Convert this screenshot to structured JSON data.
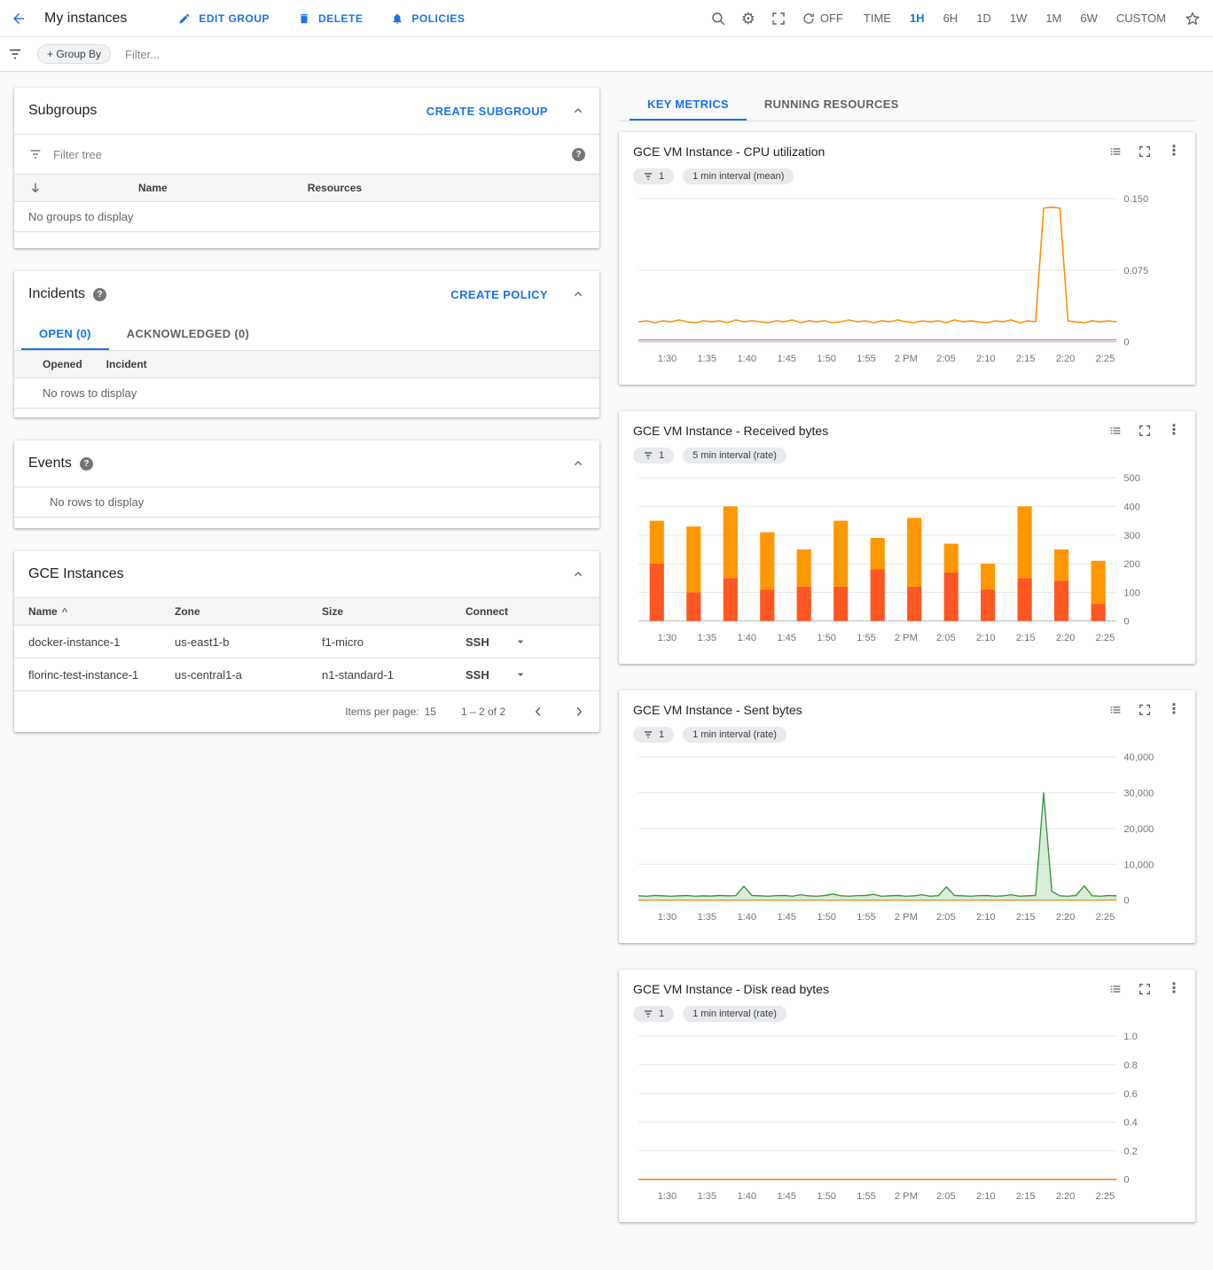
{
  "header": {
    "title": "My instances",
    "actions": [
      {
        "label": "EDIT GROUP",
        "icon": "pencil-icon"
      },
      {
        "label": "DELETE",
        "icon": "trash-icon"
      },
      {
        "label": "POLICIES",
        "icon": "bell-icon"
      }
    ],
    "refresh_label": "OFF",
    "time_label": "TIME",
    "time_ranges": [
      "1H",
      "6H",
      "1D",
      "1W",
      "1M",
      "6W",
      "CUSTOM"
    ],
    "selected_range": "1H"
  },
  "filter_bar": {
    "group_by_label": "+ Group By",
    "filter_placeholder": "Filter..."
  },
  "subgroups": {
    "title": "Subgroups",
    "create_label": "CREATE SUBGROUP",
    "filter_placeholder": "Filter tree",
    "columns": [
      "Name",
      "Resources"
    ],
    "empty_text": "No groups to display"
  },
  "incidents": {
    "title": "Incidents",
    "create_label": "CREATE POLICY",
    "tabs": [
      "OPEN (0)",
      "ACKNOWLEDGED (0)"
    ],
    "active_tab": "OPEN (0)",
    "columns": [
      "Opened",
      "Incident"
    ],
    "empty_text": "No rows to display"
  },
  "events": {
    "title": "Events",
    "empty_text": "No rows to display"
  },
  "instances": {
    "title": "GCE Instances",
    "columns": [
      "Name",
      "Zone",
      "Size",
      "Connect"
    ],
    "sort_column": "Name",
    "rows": [
      {
        "name": "docker-instance-1",
        "zone": "us-east1-b",
        "size": "f1-micro",
        "connect": "SSH"
      },
      {
        "name": "florinc-test-instance-1",
        "zone": "us-central1-a",
        "size": "n1-standard-1",
        "connect": "SSH"
      }
    ],
    "items_per_page_label": "Items per page:",
    "items_per_page": "15",
    "range_label": "1 – 2 of 2"
  },
  "metrics": {
    "tabs": [
      "KEY METRICS",
      "RUNNING RESOURCES"
    ],
    "active_tab": "KEY METRICS"
  },
  "icons": {
    "back": "arrow-left",
    "search": "magnifier",
    "settings": "gear",
    "fullscreen": "expand-corners",
    "refresh": "circular-arrow",
    "favorite": "star-outline",
    "filter": "funnel",
    "help": "question-circle",
    "collapse": "chevron-up",
    "sort": "arrow-down",
    "more": "vertical-dots",
    "legend": "list",
    "dropdown": "caret-down"
  },
  "colors": {
    "accent_blue": "#1a73e8",
    "cpu_line": "#fb8c00",
    "cpu_line_secondary": "#ba68c8",
    "received_bottom": "#ff5722",
    "received_top": "#ff9800",
    "sent_line": "#388e3c",
    "disk_line_red": "#e53935",
    "disk_line_orange": "#fb8c00"
  },
  "chart_data": [
    {
      "type": "line",
      "title": "GCE VM Instance - CPU utilization",
      "filter_chip": "1",
      "interval_chip": "1 min interval (mean)",
      "x_ticks": [
        "1:30",
        "1:35",
        "1:40",
        "1:45",
        "1:50",
        "1:55",
        "2 PM",
        "2:05",
        "2:10",
        "2:15",
        "2:20",
        "2:25"
      ],
      "ylim": [
        0,
        0.15
      ],
      "y_ticks": [
        {
          "value": 0.15,
          "label": "0.150"
        },
        {
          "value": 0.075,
          "label": "0.075"
        },
        {
          "value": 0,
          "label": "0"
        }
      ],
      "series": [
        {
          "color": "#fb8c00",
          "width": 1.5,
          "values": [
            0.021,
            0.022,
            0.02,
            0.022,
            0.021,
            0.023,
            0.021,
            0.02,
            0.022,
            0.021,
            0.022,
            0.02,
            0.023,
            0.021,
            0.022,
            0.021,
            0.02,
            0.022,
            0.021,
            0.023,
            0.02,
            0.022,
            0.021,
            0.022,
            0.02,
            0.021,
            0.023,
            0.021,
            0.022,
            0.02,
            0.022,
            0.021,
            0.023,
            0.021,
            0.02,
            0.022,
            0.021,
            0.022,
            0.02,
            0.023,
            0.021,
            0.022,
            0.021,
            0.02,
            0.022,
            0.021,
            0.023,
            0.02,
            0.022,
            0.021,
            0.14,
            0.141,
            0.14,
            0.022,
            0.021,
            0.02,
            0.022,
            0.021,
            0.022,
            0.021
          ]
        },
        {
          "color": "#ba68c8",
          "width": 1.2,
          "values": [
            0.002,
            0.002
          ]
        }
      ]
    },
    {
      "type": "stacked_bar",
      "title": "GCE VM Instance - Received bytes",
      "filter_chip": "1",
      "interval_chip": "5 min interval (rate)",
      "x_ticks": [
        "1:30",
        "1:35",
        "1:40",
        "1:45",
        "1:50",
        "1:55",
        "2 PM",
        "2:05",
        "2:10",
        "2:15",
        "2:20",
        "2:25"
      ],
      "ylim": [
        0,
        500
      ],
      "y_ticks": [
        {
          "value": 500,
          "label": "500"
        },
        {
          "value": 400,
          "label": "400"
        },
        {
          "value": 300,
          "label": "300"
        },
        {
          "value": 200,
          "label": "200"
        },
        {
          "value": 100,
          "label": "100"
        },
        {
          "value": 0,
          "label": "0"
        }
      ],
      "series": [
        {
          "color": "#ff5722",
          "values": [
            200,
            100,
            150,
            110,
            120,
            120,
            180,
            120,
            170,
            110,
            150,
            140,
            60
          ]
        },
        {
          "color": "#ff9800",
          "values": [
            150,
            230,
            250,
            200,
            130,
            230,
            110,
            240,
            100,
            90,
            250,
            110,
            150
          ]
        }
      ]
    },
    {
      "type": "line",
      "title": "GCE VM Instance - Sent bytes",
      "filter_chip": "1",
      "interval_chip": "1 min interval (rate)",
      "x_ticks": [
        "1:30",
        "1:35",
        "1:40",
        "1:45",
        "1:50",
        "1:55",
        "2 PM",
        "2:05",
        "2:10",
        "2:15",
        "2:20",
        "2:25"
      ],
      "ylim": [
        0,
        40000
      ],
      "y_ticks": [
        {
          "value": 40000,
          "label": "40,000"
        },
        {
          "value": 30000,
          "label": "30,000"
        },
        {
          "value": 20000,
          "label": "20,000"
        },
        {
          "value": 10000,
          "label": "10,000"
        },
        {
          "value": 0,
          "label": "0"
        }
      ],
      "series": [
        {
          "color": "#388e3c",
          "width": 1.3,
          "area": true,
          "fill": "#81c784",
          "values": [
            1200,
            1100,
            1300,
            1200,
            1100,
            1200,
            1300,
            1100,
            1200,
            1150,
            1300,
            1200,
            1250,
            3900,
            1300,
            1200,
            1100,
            1250,
            1300,
            1100,
            1500,
            1200,
            1100,
            1300,
            1700,
            1200,
            1100,
            1250,
            1300,
            1600,
            1100,
            1200,
            1300,
            1100,
            1200,
            1500,
            1100,
            1250,
            3700,
            1300,
            1200,
            1100,
            1250,
            1300,
            1100,
            1200,
            1500,
            1100,
            1200,
            1300,
            30000,
            2500,
            1200,
            1100,
            1300,
            4000,
            1200,
            1100,
            1300,
            1200
          ]
        },
        {
          "color": "#fb8c00",
          "width": 1.2,
          "values": [
            0,
            0
          ]
        }
      ]
    },
    {
      "type": "line",
      "title": "GCE VM Instance - Disk read bytes",
      "filter_chip": "1",
      "interval_chip": "1 min interval (rate)",
      "x_ticks": [
        "1:30",
        "1:35",
        "1:40",
        "1:45",
        "1:50",
        "1:55",
        "2 PM",
        "2:05",
        "2:10",
        "2:15",
        "2:20",
        "2:25"
      ],
      "ylim": [
        0,
        1
      ],
      "y_ticks": [
        {
          "value": 1,
          "label": "1.0"
        },
        {
          "value": 0.8,
          "label": "0.8"
        },
        {
          "value": 0.6,
          "label": "0.6"
        },
        {
          "value": 0.4,
          "label": "0.4"
        },
        {
          "value": 0.2,
          "label": "0.2"
        },
        {
          "value": 0,
          "label": "0"
        }
      ],
      "series": [
        {
          "color": "#e53935",
          "width": 1.4,
          "values": [
            0,
            0
          ]
        },
        {
          "color": "#fb8c00",
          "width": 1.2,
          "values": [
            0,
            0
          ]
        }
      ]
    }
  ]
}
